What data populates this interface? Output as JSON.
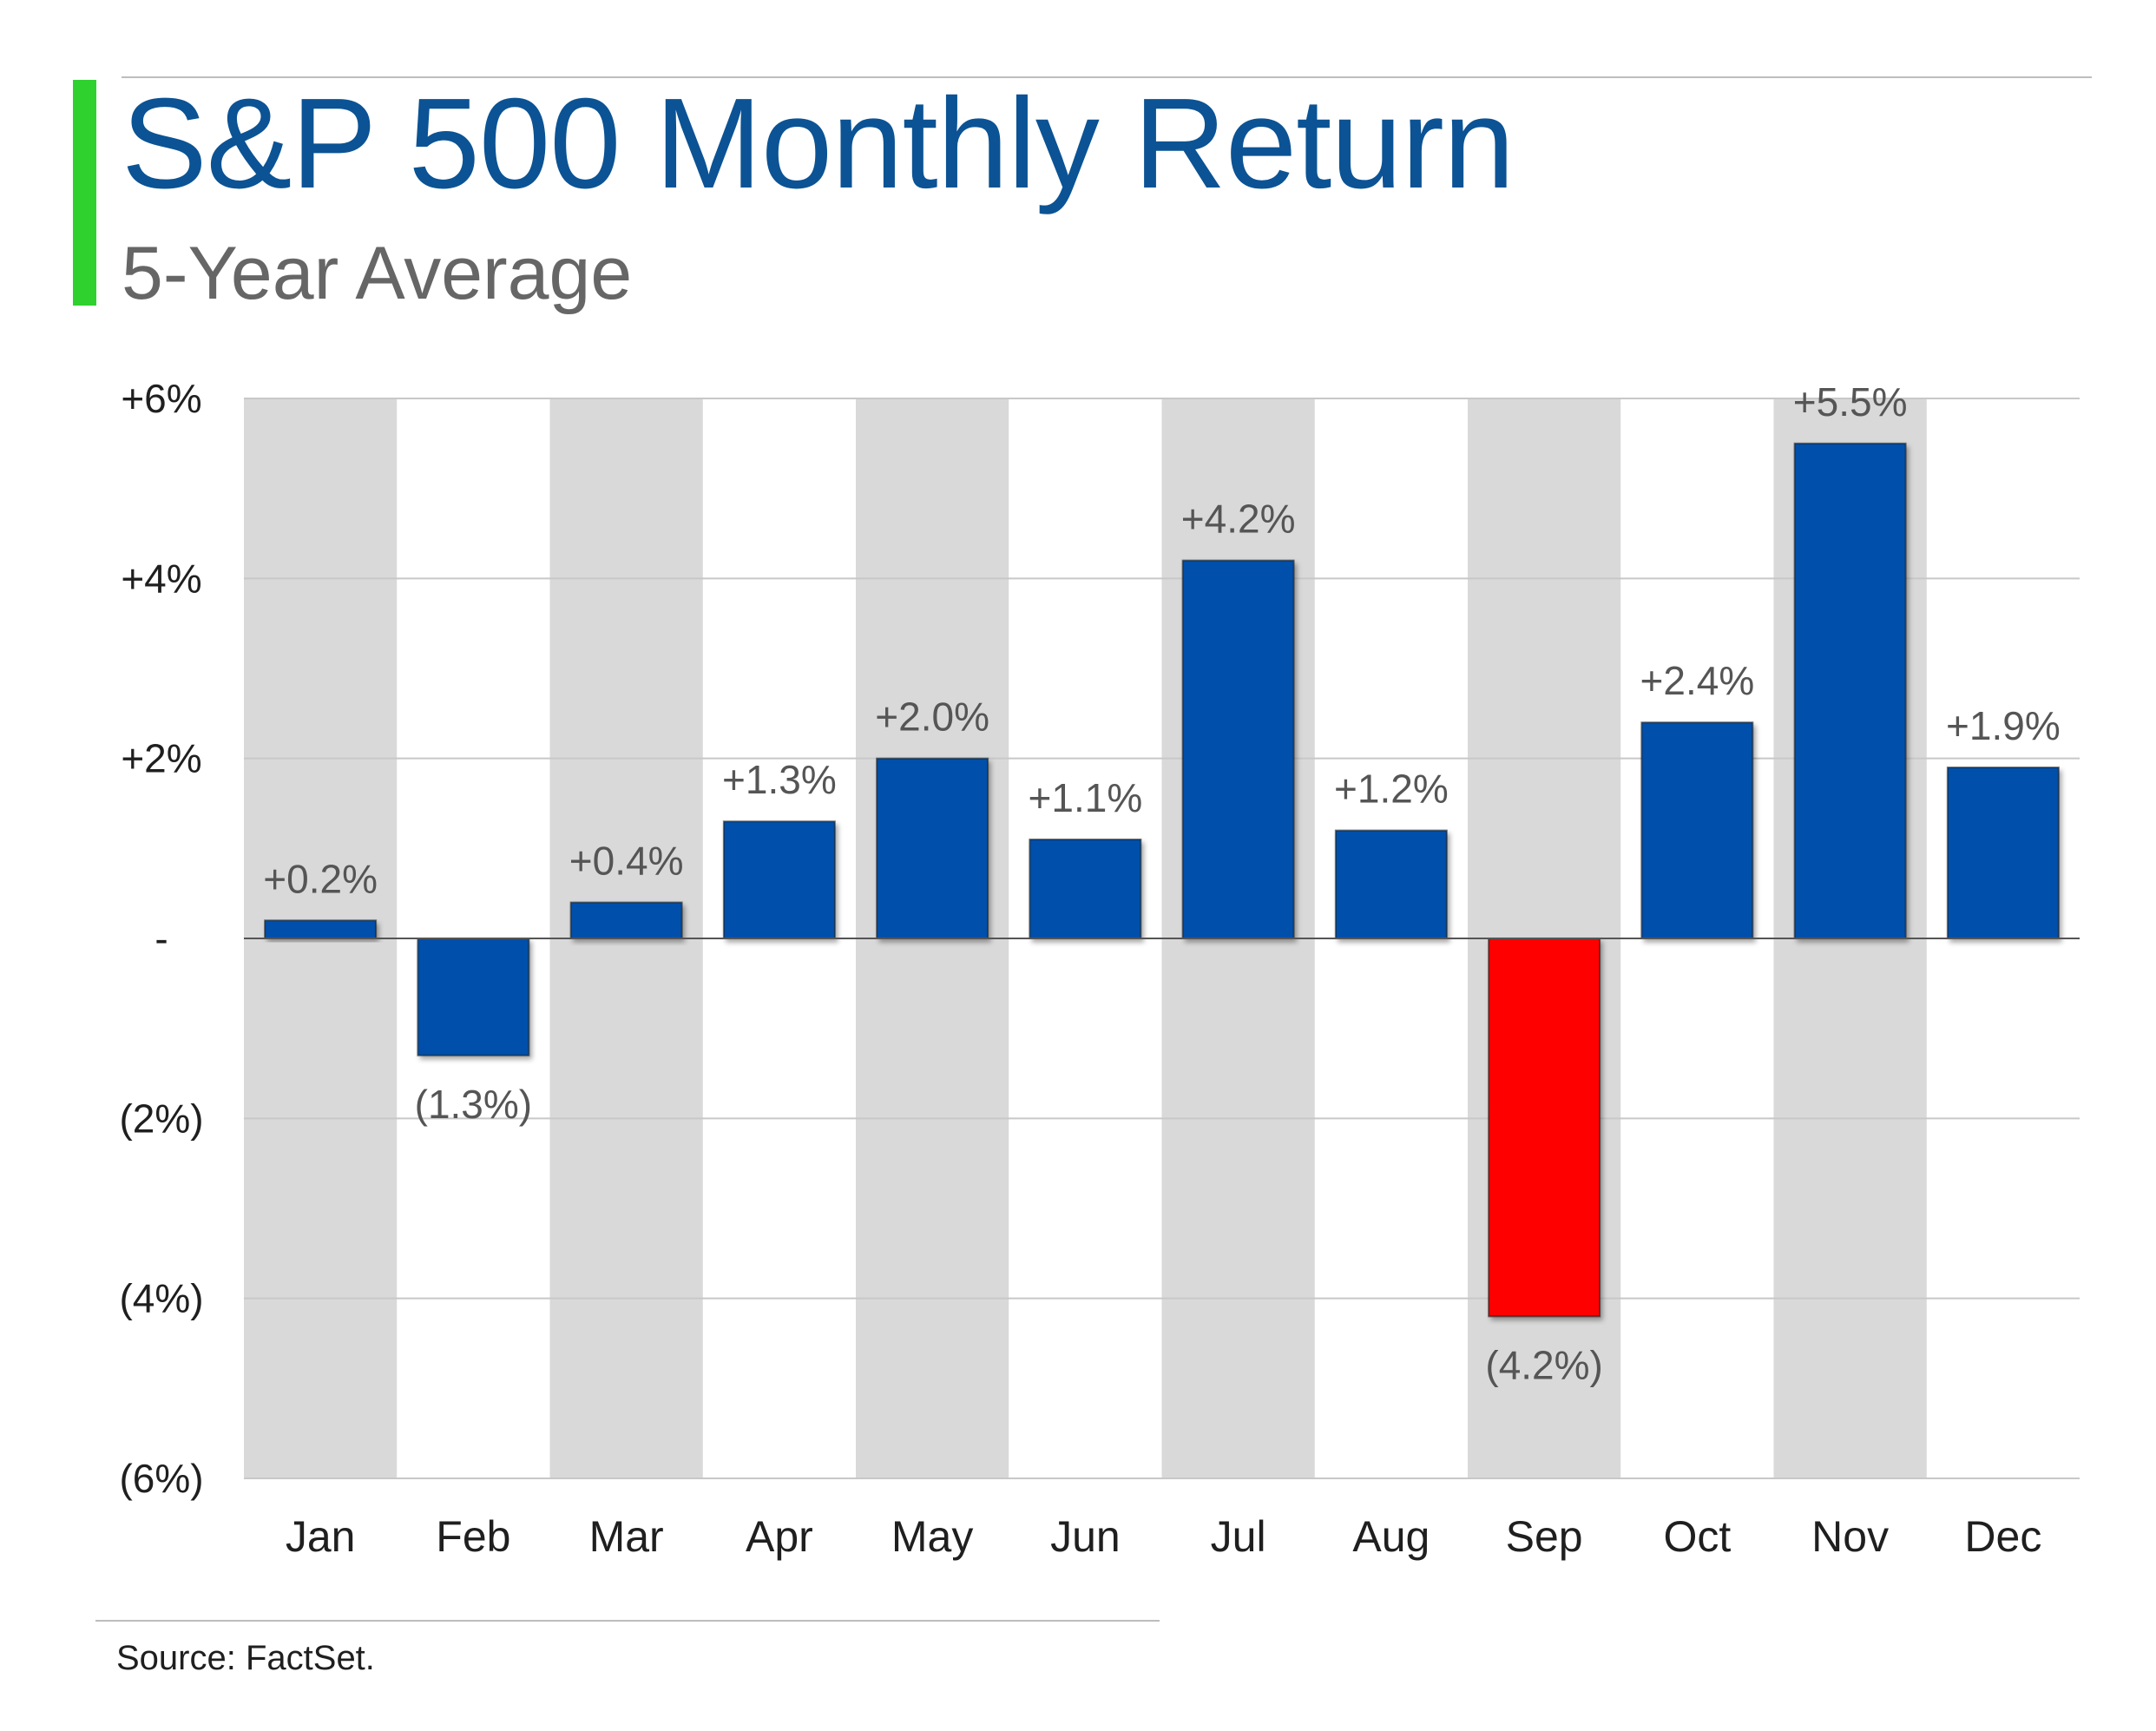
{
  "header": {
    "title": "S&P 500 Monthly Return",
    "subtitle": "5-Year Average"
  },
  "footer": {
    "source": "Source: FactSet."
  },
  "colors": {
    "accent_bar": "#2fd12f",
    "title": "#0b5394",
    "positive_bar": "#0050ab",
    "negative_highlight_bar": "#ff0000",
    "column_shade": "#d9d9d9"
  },
  "chart_data": {
    "type": "bar",
    "title": "S&P 500 Monthly Return",
    "subtitle": "5-Year Average",
    "categories": [
      "Jan",
      "Feb",
      "Mar",
      "Apr",
      "May",
      "Jun",
      "Jul",
      "Aug",
      "Sep",
      "Oct",
      "Nov",
      "Dec"
    ],
    "values": [
      0.2,
      -1.3,
      0.4,
      1.3,
      2.0,
      1.1,
      4.2,
      1.2,
      -4.2,
      2.4,
      5.5,
      1.9
    ],
    "value_labels": [
      "+0.2%",
      "(1.3%)",
      "+0.4%",
      "+1.3%",
      "+2.0%",
      "+1.1%",
      "+4.2%",
      "+1.2%",
      "(4.2%)",
      "+2.4%",
      "+5.5%",
      "+1.9%"
    ],
    "bar_colors": [
      "#0050ab",
      "#0050ab",
      "#0050ab",
      "#0050ab",
      "#0050ab",
      "#0050ab",
      "#0050ab",
      "#0050ab",
      "#ff0000",
      "#0050ab",
      "#0050ab",
      "#0050ab"
    ],
    "yticks": [
      6,
      4,
      2,
      0,
      -2,
      -4,
      -6
    ],
    "ytick_labels": [
      "+6%",
      "+4%",
      "+2%",
      "-",
      "(2%)",
      "(4%)",
      "(6%)"
    ],
    "ylim": [
      -6,
      6
    ],
    "xlabel": "",
    "ylabel": "",
    "grid": true,
    "shaded_columns": [
      "Jan",
      "Mar",
      "May",
      "Jul",
      "Sep",
      "Nov"
    ]
  }
}
